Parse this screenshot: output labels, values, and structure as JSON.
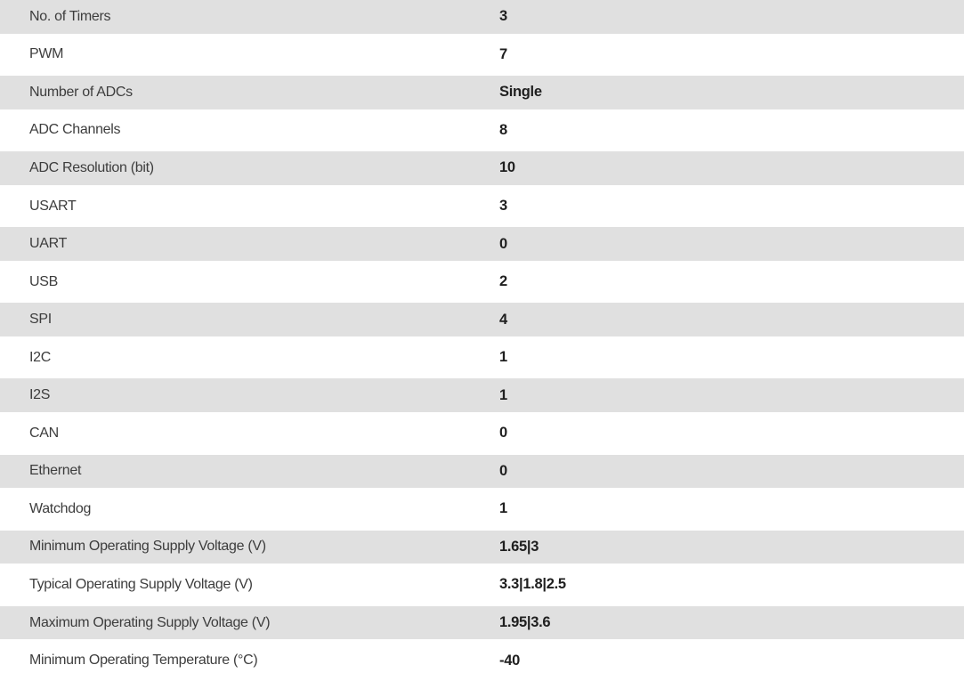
{
  "table": {
    "colors": {
      "row_alt_bg": "#e0e0e0",
      "row_bg": "#ffffff",
      "label_text": "#3d3d3d",
      "value_text": "#1f1f1f"
    },
    "rows": [
      {
        "label": "No. of Timers",
        "value": "3"
      },
      {
        "label": "PWM",
        "value": "7"
      },
      {
        "label": "Number of ADCs",
        "value": "Single"
      },
      {
        "label": "ADC Channels",
        "value": "8"
      },
      {
        "label": "ADC Resolution (bit)",
        "value": "10"
      },
      {
        "label": "USART",
        "value": "3"
      },
      {
        "label": "UART",
        "value": "0"
      },
      {
        "label": "USB",
        "value": "2"
      },
      {
        "label": "SPI",
        "value": "4"
      },
      {
        "label": "I2C",
        "value": "1"
      },
      {
        "label": "I2S",
        "value": "1"
      },
      {
        "label": "CAN",
        "value": "0"
      },
      {
        "label": "Ethernet",
        "value": "0"
      },
      {
        "label": "Watchdog",
        "value": "1"
      },
      {
        "label": "Minimum Operating Supply Voltage (V)",
        "value": "1.65|3"
      },
      {
        "label": "Typical Operating Supply Voltage (V)",
        "value": "3.3|1.8|2.5"
      },
      {
        "label": "Maximum Operating Supply Voltage (V)",
        "value": "1.95|3.6"
      },
      {
        "label": "Minimum Operating Temperature (°C)",
        "value": "-40"
      }
    ]
  }
}
